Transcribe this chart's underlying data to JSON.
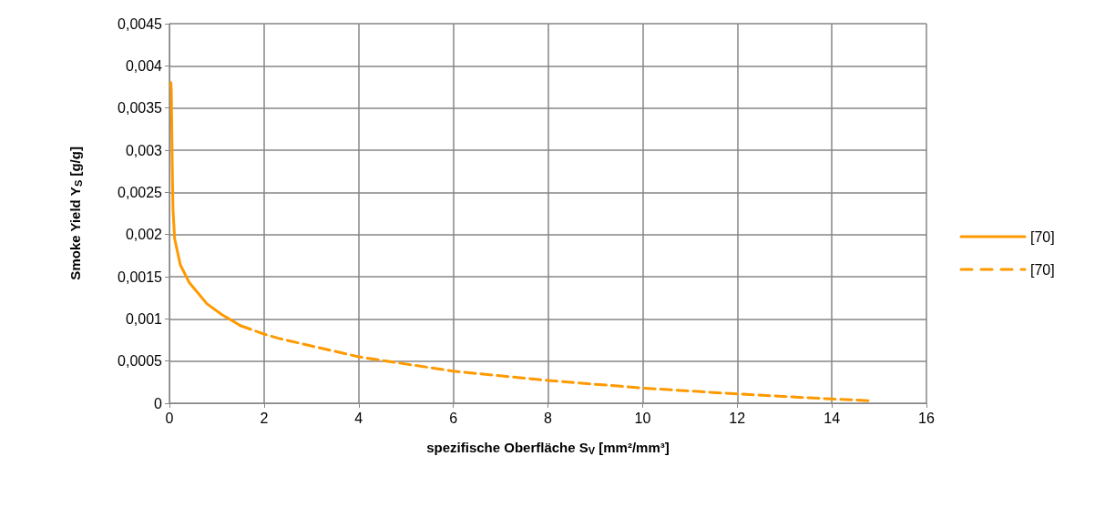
{
  "chart_data": {
    "type": "line",
    "xlabel": "spezifische Oberfläche S$_{V}$ [mm²/mm³]",
    "ylabel": "Smoke Yield Y$_{S}$ [g/g]",
    "series": [
      {
        "name": "[70]",
        "color": "#ff9900",
        "line_style": "solid",
        "x": [
          0.03,
          0.04,
          0.06,
          0.075,
          0.11,
          0.23,
          0.42,
          0.79,
          1.11,
          1.5
        ],
        "values": [
          0.0038,
          0.0037,
          0.0028,
          0.0023,
          0.00195,
          0.00164,
          0.00143,
          0.00118,
          0.00105,
          0.00092
        ]
      },
      {
        "name": "[70]",
        "color": "#ff9900",
        "line_style": "dashed",
        "x": [
          1.5,
          2,
          2.3,
          4,
          6,
          8,
          10,
          12,
          14,
          14.8
        ],
        "values": [
          0.00092,
          0.00082,
          0.00077,
          0.00055,
          0.00038,
          0.00027,
          0.00018,
          0.00011,
          5e-05,
          3e-05
        ]
      }
    ],
    "xlim": [
      0,
      16
    ],
    "xticks": [
      0,
      2,
      4,
      6,
      8,
      10,
      12,
      14,
      16
    ],
    "ylim": [
      0,
      0.0045
    ],
    "yticks": [
      0,
      {
        "value": 0.0005,
        "label": "0,0005"
      },
      {
        "value": 0.001,
        "label": "0,001"
      },
      {
        "value": 0.0015,
        "label": "0,0015"
      },
      {
        "value": 0.002,
        "label": "0,002"
      },
      {
        "value": 0.0025,
        "label": "0,0025"
      },
      {
        "value": 0.003,
        "label": "0,003"
      },
      {
        "value": 0.0035,
        "label": "0,0035"
      },
      {
        "value": 0.004,
        "label": "0,004"
      },
      {
        "value": 0.0045,
        "label": "0,0045"
      }
    ],
    "grid": true,
    "legend": "right",
    "marker": "none"
  }
}
